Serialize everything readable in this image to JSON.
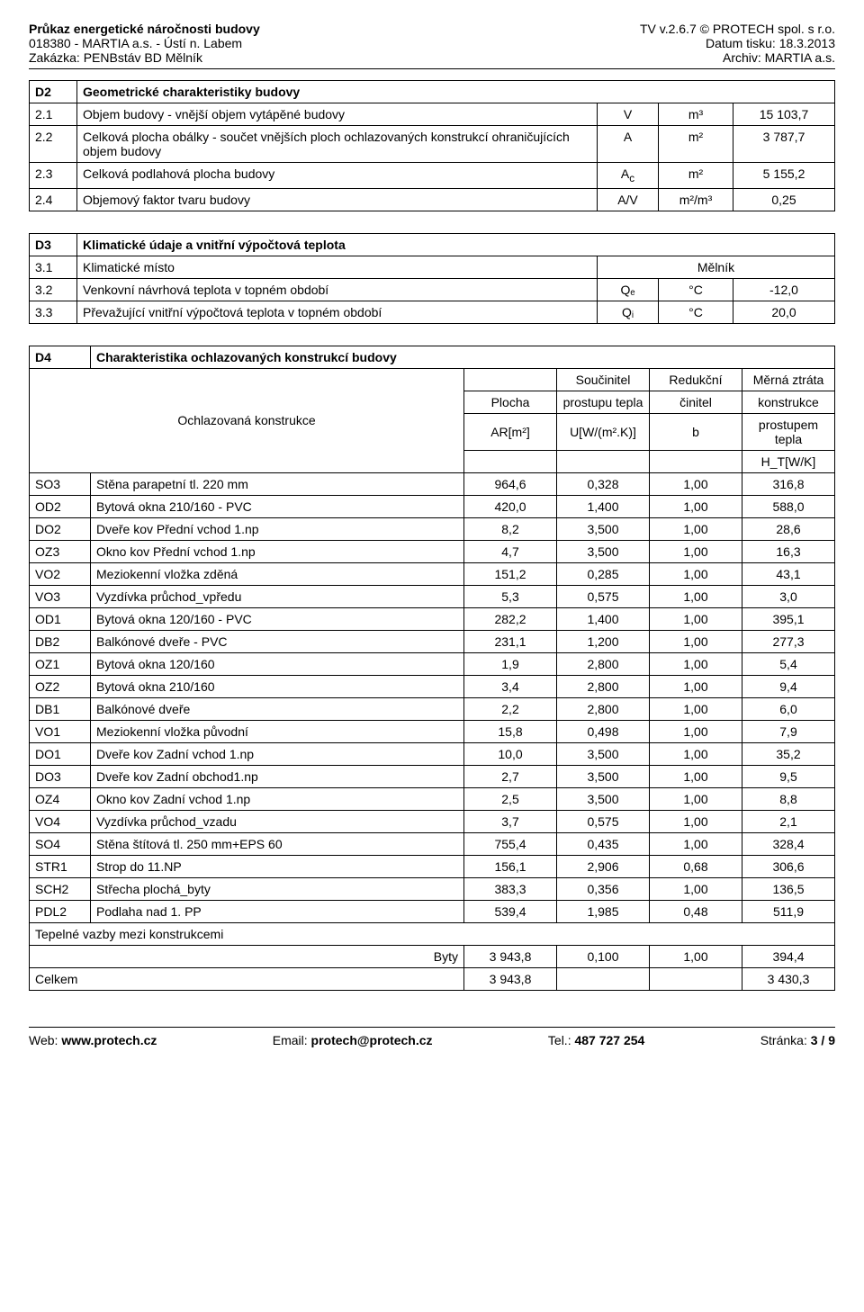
{
  "header": {
    "title": "Průkaz energetické náročnosti budovy",
    "project": "018380 - MARTIA a.s. - Ústí n. Labem",
    "order": "Zakázka: PENBstáv BD Mělník",
    "version": "TV v.2.6.7 © PROTECH spol. s r.o.",
    "print_date": "Datum tisku: 18.3.2013",
    "archive": "Archiv: MARTIA a.s."
  },
  "d2": {
    "section": "D2",
    "title": "Geometrické charakteristiky budovy",
    "rows": [
      {
        "num": "2.1",
        "label": "Objem budovy - vnější objem vytápěné budovy",
        "sym": "V",
        "unit": "m³",
        "val": "15 103,7"
      },
      {
        "num": "2.2",
        "label": "Celková plocha obálky - součet vnějších ploch ochlazovaných konstrukcí ohraničujících objem budovy",
        "sym": "A",
        "unit": "m²",
        "val": "3 787,7"
      },
      {
        "num": "2.3",
        "label": "Celková podlahová plocha budovy",
        "sym": "A_c",
        "unit": "m²",
        "val": "5 155,2"
      },
      {
        "num": "2.4",
        "label": "Objemový faktor tvaru budovy",
        "sym": "A/V",
        "unit": "m²/m³",
        "val": "0,25"
      }
    ]
  },
  "d3": {
    "section": "D3",
    "title": "Klimatické údaje a vnitřní výpočtová teplota",
    "rows": [
      {
        "num": "3.1",
        "label": "Klimatické místo",
        "sym": "",
        "unit": "",
        "val": "Mělník"
      },
      {
        "num": "3.2",
        "label": "Venkovní návrhová teplota v topném období",
        "sym": "Qₑ",
        "unit": "°C",
        "val": "-12,0"
      },
      {
        "num": "3.3",
        "label": "Převažující vnitřní výpočtová teplota v topném období",
        "sym": "Qᵢ",
        "unit": "°C",
        "val": "20,0"
      }
    ]
  },
  "d4": {
    "section": "D4",
    "title": "Charakteristika ochlazovaných konstrukcí budovy",
    "header_col1": "Ochlazovaná konstrukce",
    "header_col2a": "Plocha",
    "header_col2b": "AR[m²]",
    "header_col3a": "Součinitel",
    "header_col3b": "prostupu tepla",
    "header_col3c": "U[W/(m².K)]",
    "header_col4a": "Redukční",
    "header_col4b": "činitel",
    "header_col4c": "b",
    "header_col5a": "Měrná ztráta",
    "header_col5b": "konstrukce",
    "header_col5c": "prostupem tepla",
    "header_col5d": "H_T[W/K]",
    "rows": [
      {
        "code": "SO3",
        "desc": "Stěna parapetní tl. 220 mm",
        "a": "964,6",
        "b": "0,328",
        "c": "1,00",
        "d": "316,8"
      },
      {
        "code": "OD2",
        "desc": "Bytová okna 210/160 - PVC",
        "a": "420,0",
        "b": "1,400",
        "c": "1,00",
        "d": "588,0"
      },
      {
        "code": "DO2",
        "desc": "Dveře kov Přední vchod 1.np",
        "a": "8,2",
        "b": "3,500",
        "c": "1,00",
        "d": "28,6"
      },
      {
        "code": "OZ3",
        "desc": "Okno kov Přední vchod 1.np",
        "a": "4,7",
        "b": "3,500",
        "c": "1,00",
        "d": "16,3"
      },
      {
        "code": "VO2",
        "desc": "Meziokenní vložka zděná",
        "a": "151,2",
        "b": "0,285",
        "c": "1,00",
        "d": "43,1"
      },
      {
        "code": "VO3",
        "desc": "Vyzdívka průchod_vpředu",
        "a": "5,3",
        "b": "0,575",
        "c": "1,00",
        "d": "3,0"
      },
      {
        "code": "OD1",
        "desc": "Bytová okna 120/160 - PVC",
        "a": "282,2",
        "b": "1,400",
        "c": "1,00",
        "d": "395,1"
      },
      {
        "code": "DB2",
        "desc": "Balkónové dveře - PVC",
        "a": "231,1",
        "b": "1,200",
        "c": "1,00",
        "d": "277,3"
      },
      {
        "code": "OZ1",
        "desc": "Bytová okna 120/160",
        "a": "1,9",
        "b": "2,800",
        "c": "1,00",
        "d": "5,4"
      },
      {
        "code": "OZ2",
        "desc": "Bytová okna 210/160",
        "a": "3,4",
        "b": "2,800",
        "c": "1,00",
        "d": "9,4"
      },
      {
        "code": "DB1",
        "desc": "Balkónové dveře",
        "a": "2,2",
        "b": "2,800",
        "c": "1,00",
        "d": "6,0"
      },
      {
        "code": "VO1",
        "desc": "Meziokenní vložka původní",
        "a": "15,8",
        "b": "0,498",
        "c": "1,00",
        "d": "7,9"
      },
      {
        "code": "DO1",
        "desc": "Dveře kov Zadní vchod 1.np",
        "a": "10,0",
        "b": "3,500",
        "c": "1,00",
        "d": "35,2"
      },
      {
        "code": "DO3",
        "desc": "Dveře kov Zadní obchod1.np",
        "a": "2,7",
        "b": "3,500",
        "c": "1,00",
        "d": "9,5"
      },
      {
        "code": "OZ4",
        "desc": "Okno kov Zadní vchod 1.np",
        "a": "2,5",
        "b": "3,500",
        "c": "1,00",
        "d": "8,8"
      },
      {
        "code": "VO4",
        "desc": "Vyzdívka průchod_vzadu",
        "a": "3,7",
        "b": "0,575",
        "c": "1,00",
        "d": "2,1"
      },
      {
        "code": "SO4",
        "desc": "Stěna štítová tl. 250 mm+EPS 60",
        "a": "755,4",
        "b": "0,435",
        "c": "1,00",
        "d": "328,4"
      },
      {
        "code": "STR1",
        "desc": "Strop do 11.NP",
        "a": "156,1",
        "b": "2,906",
        "c": "0,68",
        "d": "306,6"
      },
      {
        "code": "SCH2",
        "desc": "Střecha plochá_byty",
        "a": "383,3",
        "b": "0,356",
        "c": "1,00",
        "d": "136,5"
      },
      {
        "code": "PDL2",
        "desc": "Podlaha nad 1. PP",
        "a": "539,4",
        "b": "1,985",
        "c": "0,48",
        "d": "511,9"
      }
    ],
    "thermal_label": "Tepelné vazby mezi konstrukcemi",
    "byty_label": "Byty",
    "byty": {
      "a": "3 943,8",
      "b": "0,100",
      "c": "1,00",
      "d": "394,4"
    },
    "total_label": "Celkem",
    "total": {
      "a": "3 943,8",
      "d": "3 430,3"
    }
  },
  "footer": {
    "web_label": "Web: ",
    "web": "www.protech.cz",
    "email_label": "Email: ",
    "email": "protech@protech.cz",
    "tel_label": "Tel.: ",
    "tel": "487 727 254",
    "page_label": "Stránka: ",
    "page": "3 / 9"
  }
}
